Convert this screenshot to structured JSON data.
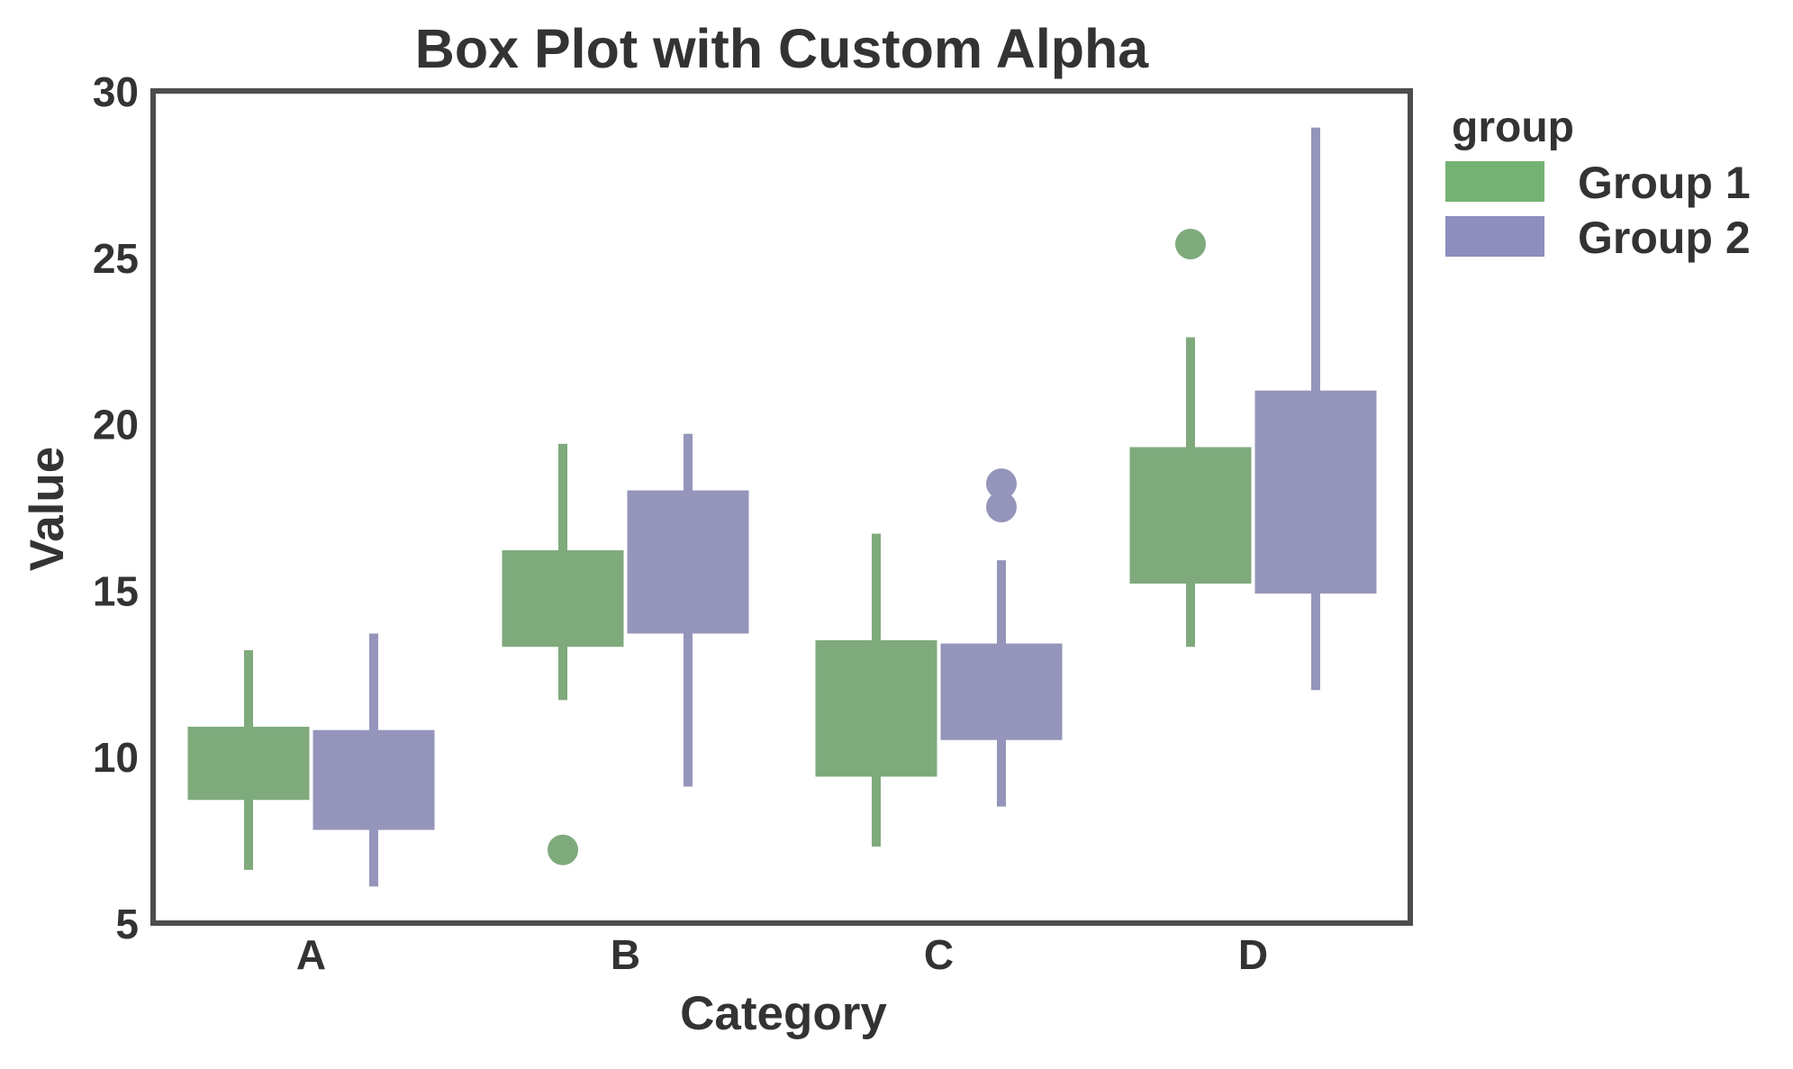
{
  "chart_data": {
    "type": "box",
    "title": "Box Plot with Custom Alpha",
    "xlabel": "Category",
    "ylabel": "Value",
    "categories": [
      "A",
      "B",
      "C",
      "D"
    ],
    "ylim": [
      5,
      30
    ],
    "yticks": [
      5,
      10,
      15,
      20,
      25,
      30
    ],
    "grid": false,
    "legend": {
      "title": "group",
      "position": "outside right, top",
      "entries": [
        "Group 1",
        "Group 2"
      ]
    },
    "series": [
      {
        "name": "Group 1",
        "color": "#74b274",
        "box_color": "#7faa7c",
        "boxes": [
          {
            "category": "A",
            "whisker_low": 6.6,
            "q1": 8.7,
            "q3": 10.9,
            "whisker_high": 13.2,
            "outliers": []
          },
          {
            "category": "B",
            "whisker_low": 11.7,
            "q1": 13.3,
            "q3": 16.2,
            "whisker_high": 19.4,
            "outliers": [
              7.2
            ]
          },
          {
            "category": "C",
            "whisker_low": 7.3,
            "q1": 9.4,
            "q3": 13.5,
            "whisker_high": 16.7,
            "outliers": []
          },
          {
            "category": "D",
            "whisker_low": 13.3,
            "q1": 15.2,
            "q3": 19.3,
            "whisker_high": 22.6,
            "outliers": [
              25.4
            ]
          }
        ]
      },
      {
        "name": "Group 2",
        "color": "#8d8dbf",
        "box_color": "#9595bb",
        "boxes": [
          {
            "category": "A",
            "whisker_low": 6.1,
            "q1": 7.8,
            "q3": 10.8,
            "whisker_high": 13.7,
            "outliers": []
          },
          {
            "category": "B",
            "whisker_low": 9.1,
            "q1": 13.7,
            "q3": 18.0,
            "whisker_high": 19.7,
            "outliers": []
          },
          {
            "category": "C",
            "whisker_low": 8.5,
            "q1": 10.5,
            "q3": 13.4,
            "whisker_high": 15.9,
            "outliers": [
              17.5,
              18.2
            ]
          },
          {
            "category": "D",
            "whisker_low": 12.0,
            "q1": 14.9,
            "q3": 21.0,
            "whisker_high": 28.9,
            "outliers": []
          }
        ]
      }
    ]
  },
  "colors": {
    "text": "#333333",
    "frame": "#4d4d4d",
    "background": "#ffffff"
  }
}
